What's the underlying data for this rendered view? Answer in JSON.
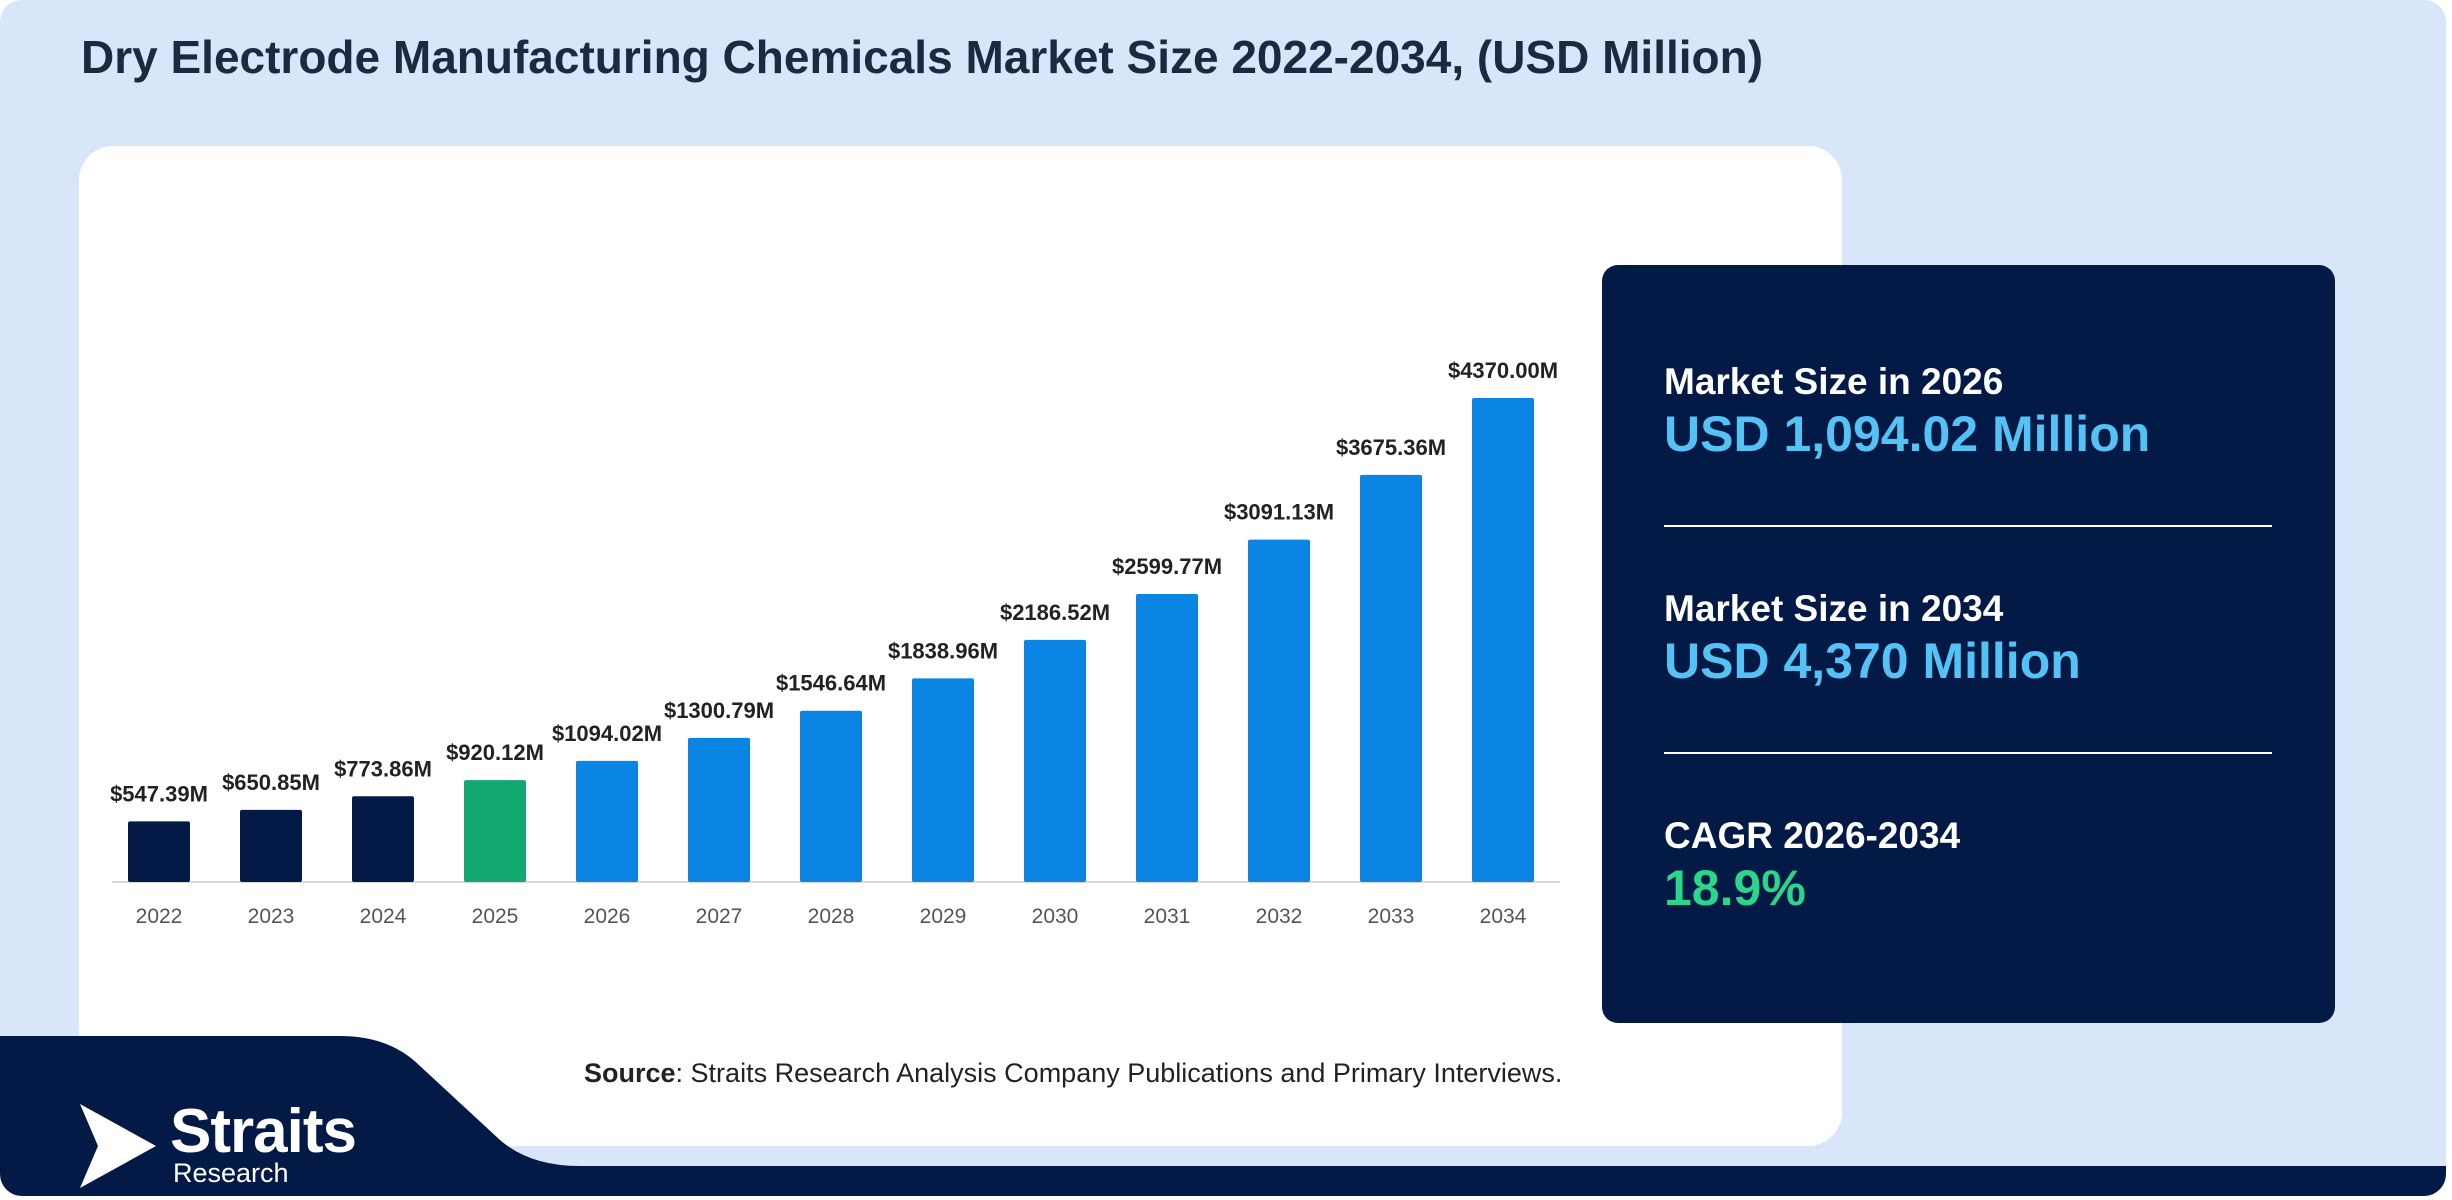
{
  "title": "Dry Electrode Manufacturing Chemicals Market Size 2022-2034, (USD Million)",
  "colors": {
    "background": "#d9e6f9",
    "historical_bar": "#031a47",
    "base_year_bar": "#12a86f",
    "forecast_bar": "#0b85e3",
    "panel": "#031a47",
    "value_text": "#55c2f5",
    "cagr_text": "#2bd68a"
  },
  "chart_data": {
    "type": "bar",
    "title": "Dry Electrode Manufacturing Chemicals Market Size 2022-2034, (USD Million)",
    "xlabel": "",
    "ylabel": "",
    "categories": [
      "2022",
      "2023",
      "2024",
      "2025",
      "2026",
      "2027",
      "2028",
      "2029",
      "2030",
      "2031",
      "2032",
      "2033",
      "2034"
    ],
    "values": [
      547.39,
      650.85,
      773.86,
      920.12,
      1094.02,
      1300.79,
      1546.64,
      1838.96,
      2186.52,
      2599.77,
      3091.13,
      3675.36,
      4370.0
    ],
    "data_labels": [
      "$547.39M",
      "$650.85M",
      "$773.86M",
      "$920.12M",
      "$1094.02M",
      "$1300.79M",
      "$1546.64M",
      "$1838.96M",
      "$2186.52M",
      "$2599.77M",
      "$3091.13M",
      "$3675.36M",
      "$4370.00M"
    ],
    "bar_groups": [
      "historical",
      "historical",
      "historical",
      "base",
      "forecast",
      "forecast",
      "forecast",
      "forecast",
      "forecast",
      "forecast",
      "forecast",
      "forecast",
      "forecast"
    ],
    "ylim": [
      0,
      4370
    ],
    "grid": false,
    "legend": "none"
  },
  "stats": [
    {
      "label": "Market Size in 2026",
      "value": "USD 1,094.02 Million"
    },
    {
      "label": "Market Size in 2034",
      "value": "USD 4,370 Million"
    },
    {
      "label": "CAGR 2026-2034",
      "value": "18.9%"
    }
  ],
  "source": {
    "prefix": "Source",
    "text": ": Straits Research Analysis Company Publications and Primary Interviews."
  },
  "logo": {
    "name": "Straits",
    "sub": "Research"
  }
}
